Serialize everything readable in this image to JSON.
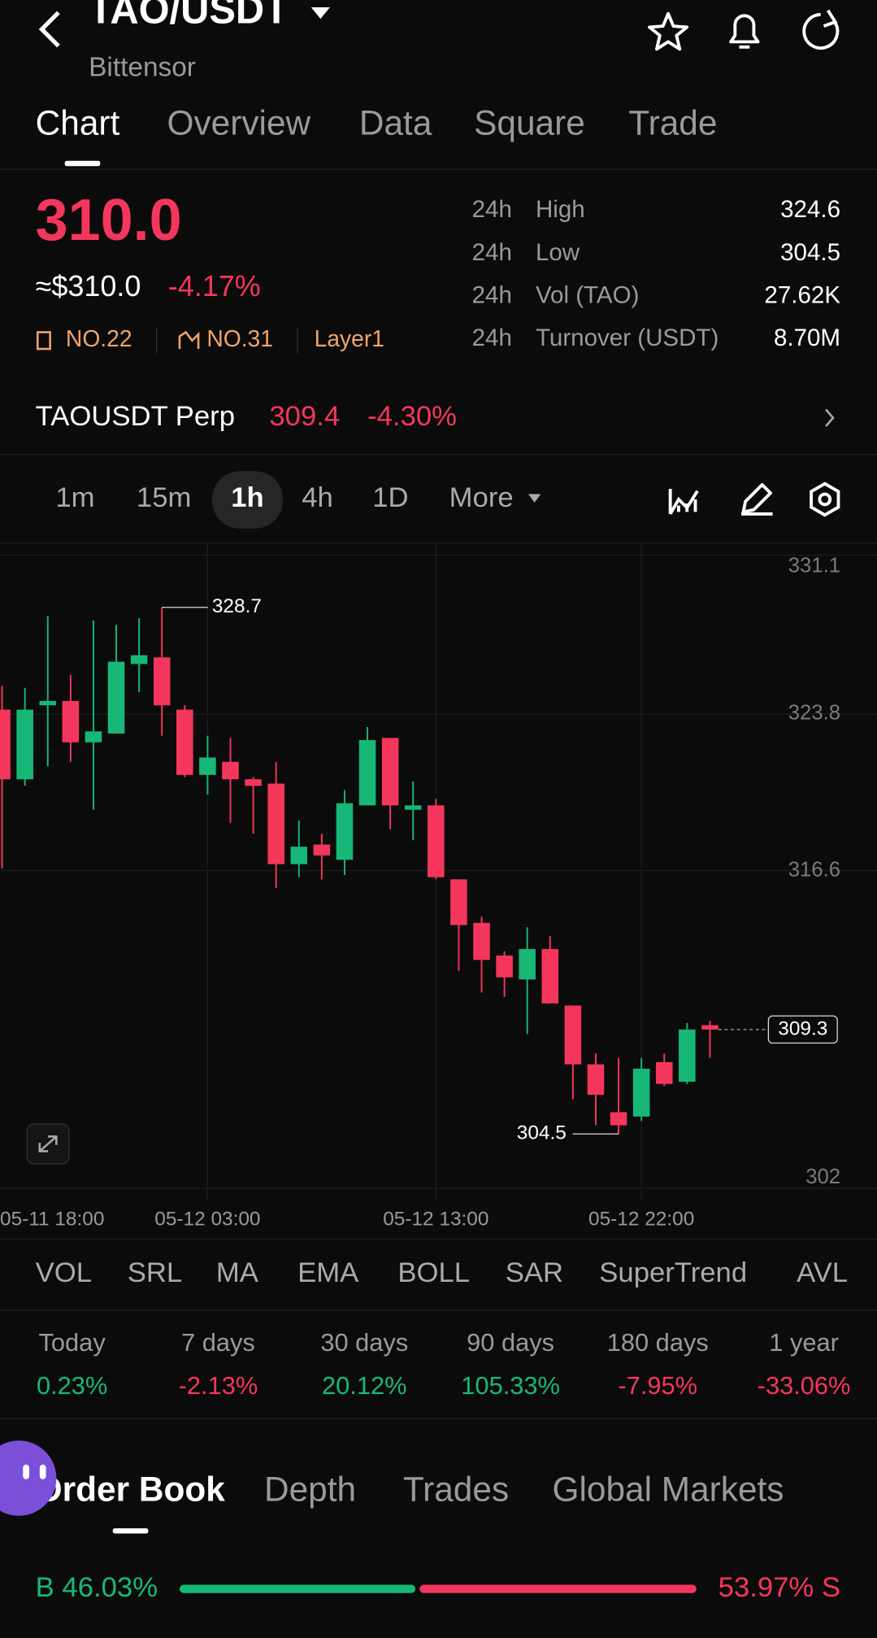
{
  "header": {
    "pair": "TAO/USDT",
    "name": "Bittensor"
  },
  "tabs": [
    "Chart",
    "Overview",
    "Data",
    "Square",
    "Trade"
  ],
  "price": {
    "last": "310.0",
    "usd": "≈$310.0",
    "change": "-4.17%"
  },
  "badges": [
    "NO.22",
    "NO.31",
    "Layer1"
  ],
  "stats": [
    {
      "period": "24h",
      "label": "High",
      "value": "324.6"
    },
    {
      "period": "24h",
      "label": "Low",
      "value": "304.5"
    },
    {
      "period": "24h",
      "label": "Vol (TAO)",
      "value": "27.62K"
    },
    {
      "period": "24h",
      "label": "Turnover (USDT)",
      "value": "8.70M"
    }
  ],
  "perp": {
    "name": "TAOUSDT Perp",
    "price": "309.4",
    "change": "-4.30%"
  },
  "intervals": [
    "1m",
    "15m",
    "1h",
    "4h",
    "1D",
    "More"
  ],
  "chart_data": {
    "type": "candlestick",
    "categories": [
      "05-11 18:00",
      null,
      null,
      null,
      null,
      null,
      null,
      null,
      null,
      "05-12 03:00",
      null,
      null,
      null,
      null,
      null,
      null,
      null,
      null,
      null,
      "05-12 13:00",
      null,
      null,
      null,
      null,
      null,
      null,
      null,
      null,
      "05-12 22:00",
      null,
      null,
      null
    ],
    "open": [
      324.0,
      320.8,
      324.2,
      324.4,
      322.5,
      322.9,
      326.1,
      326.4,
      324.0,
      321.0,
      321.6,
      320.8,
      320.6,
      316.9,
      317.8,
      317.1,
      319.6,
      322.7,
      319.4,
      319.6,
      316.2,
      314.2,
      312.7,
      311.6,
      313.0,
      310.4,
      307.7,
      305.5,
      305.3,
      307.8,
      306.9,
      309.5
    ],
    "high": [
      325.1,
      325.0,
      328.3,
      325.6,
      328.1,
      327.9,
      328.2,
      328.7,
      324.2,
      322.8,
      322.7,
      320.9,
      321.6,
      318.9,
      318.3,
      320.3,
      323.2,
      322.7,
      320.7,
      319.9,
      316.2,
      314.5,
      312.9,
      314.0,
      313.6,
      310.4,
      308.2,
      308.0,
      308.0,
      308.2,
      309.6,
      309.7
    ],
    "low": [
      316.7,
      320.5,
      321.4,
      321.6,
      319.4,
      322.9,
      324.8,
      322.8,
      320.9,
      320.1,
      318.8,
      318.3,
      315.8,
      316.3,
      316.2,
      316.4,
      319.6,
      318.5,
      318.0,
      316.2,
      312.0,
      311.0,
      310.8,
      309.1,
      310.5,
      306.1,
      304.9,
      304.5,
      305.1,
      306.7,
      306.8,
      308.0
    ],
    "close": [
      320.8,
      324.0,
      324.4,
      322.5,
      323.0,
      326.2,
      326.5,
      324.2,
      321.0,
      321.8,
      320.8,
      320.5,
      316.9,
      317.7,
      317.3,
      319.7,
      322.6,
      319.6,
      319.6,
      316.3,
      314.1,
      312.5,
      311.7,
      313.0,
      310.5,
      307.7,
      306.3,
      304.9,
      307.5,
      306.8,
      309.3,
      309.3
    ],
    "ylim": [
      301.5,
      331.6
    ],
    "yticks": [
      331.1,
      323.8,
      316.6,
      302.0
    ],
    "last_price": 309.3,
    "grid": true,
    "up_color": "#17b877",
    "down_color": "#f5365c"
  },
  "indicators": [
    "VOL",
    "SRL",
    "MA",
    "EMA",
    "BOLL",
    "SAR",
    "SuperTrend",
    "AVL"
  ],
  "performance": [
    {
      "period": "Today",
      "change": "0.23%"
    },
    {
      "period": "7 days",
      "change": "-2.13%"
    },
    {
      "period": "30 days",
      "change": "20.12%"
    },
    {
      "period": "90 days",
      "change": "105.33%"
    },
    {
      "period": "180 days",
      "change": "-7.95%"
    },
    {
      "period": "1 year",
      "change": "-33.06%"
    }
  ],
  "book_tabs": [
    "Order Book",
    "Depth",
    "Trades",
    "Global Markets"
  ],
  "ratio": {
    "values": [
      46.03,
      53.97
    ],
    "value_labels": [
      "B 46.03%",
      "53.97% S"
    ]
  }
}
